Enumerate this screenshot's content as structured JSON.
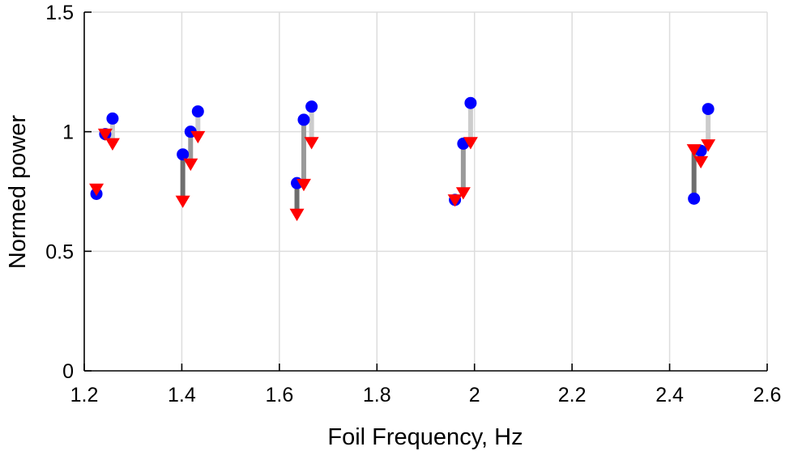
{
  "chart_data": {
    "type": "scatter",
    "title": "",
    "xlabel": "Foil Frequency, Hz",
    "ylabel": "Normed power",
    "xlim": [
      1.2,
      2.6
    ],
    "ylim": [
      0,
      1.5
    ],
    "xticks": [
      1.2,
      1.4,
      1.6,
      1.8,
      2.0,
      2.2,
      2.4,
      2.6
    ],
    "xtick_labels": [
      "1.2",
      "1.4",
      "1.6",
      "1.8",
      "2",
      "2.2",
      "2.4",
      "2.6"
    ],
    "yticks": [
      0,
      0.5,
      1.0,
      1.5
    ],
    "ytick_labels": [
      "0",
      "0.5",
      "1",
      "1.5"
    ],
    "grid": true,
    "colors": {
      "circle": "#0000ff",
      "triangle": "#ff0000",
      "stem_dark": "#6e6e6e",
      "stem_mid": "#9a9a9a",
      "stem_light": "#cccccc",
      "grid": "#dddddd"
    },
    "pairs": [
      {
        "x": 1.225,
        "circle": 0.74,
        "triangle": 0.76,
        "stem": "dark"
      },
      {
        "x": 1.243,
        "circle": 0.99,
        "triangle": 0.99,
        "stem": "mid"
      },
      {
        "x": 1.258,
        "circle": 1.055,
        "triangle": 0.95,
        "stem": "light"
      },
      {
        "x": 1.402,
        "circle": 0.905,
        "triangle": 0.71,
        "stem": "dark"
      },
      {
        "x": 1.418,
        "circle": 1.0,
        "triangle": 0.865,
        "stem": "mid"
      },
      {
        "x": 1.433,
        "circle": 1.085,
        "triangle": 0.98,
        "stem": "light"
      },
      {
        "x": 1.636,
        "circle": 0.785,
        "triangle": 0.655,
        "stem": "dark"
      },
      {
        "x": 1.65,
        "circle": 1.05,
        "triangle": 0.78,
        "stem": "mid"
      },
      {
        "x": 1.666,
        "circle": 1.105,
        "triangle": 0.955,
        "stem": "light"
      },
      {
        "x": 1.96,
        "circle": 0.715,
        "triangle": 0.715,
        "stem": "dark"
      },
      {
        "x": 1.977,
        "circle": 0.95,
        "triangle": 0.745,
        "stem": "mid"
      },
      {
        "x": 1.992,
        "circle": 1.12,
        "triangle": 0.955,
        "stem": "light"
      },
      {
        "x": 2.45,
        "circle": 0.72,
        "triangle": 0.925,
        "stem": "dark"
      },
      {
        "x": 2.464,
        "circle": 0.92,
        "triangle": 0.875,
        "stem": "mid"
      },
      {
        "x": 2.479,
        "circle": 1.095,
        "triangle": 0.945,
        "stem": "light"
      }
    ]
  }
}
